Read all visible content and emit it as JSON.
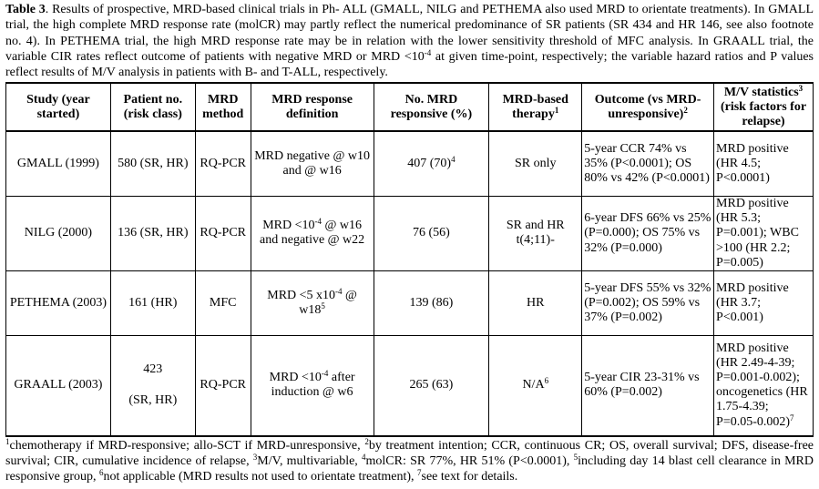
{
  "caption": {
    "label": "Table 3",
    "text": ". Results of prospective, MRD-based clinical trials in Ph- ALL (GMALL, NILG and PETHEMA also used MRD to orientate treatments). In GMALL trial, the high complete MRD response rate (molCR) may partly reflect the numerical predominance of SR patients (SR 434 and HR 146, see also footnote no. 4). In PETHEMA trial, the high MRD response rate may be in relation with the lower sensitivity threshold of MFC analysis. In GRAALL trial, the variable CIR rates reflect outcome of patients with negative MRD or MRD <10",
    "sup": "-4",
    "text2": " at given time-point, respectively; the variable hazard ratios and P values reflect results of M/V analysis in patients with B- and T-ALL, respectively."
  },
  "headers": {
    "study": "Study (year started)",
    "patient": "Patient no. (risk class)",
    "method": "MRD method",
    "definition": "MRD response definition",
    "responsive": "No. MRD responsive (%)",
    "therapy": "MRD-based therapy",
    "therapy_sup": "1",
    "outcome": "Outcome (vs MRD-unresponsive)",
    "outcome_sup": "2",
    "mv_a": "M/V statistics",
    "mv_sup": "3",
    "mv_b": " (risk factors for relapse)"
  },
  "rows": [
    {
      "study": "GMALL (1999)",
      "patient": "580 (SR, HR)",
      "method": "RQ-PCR",
      "definition": "MRD negative @ w10 and @ w16",
      "def_sup": "",
      "def_tail": "",
      "responsive": "407 (70)",
      "resp_sup": "4",
      "therapy": "SR only",
      "therapy_sup": "",
      "outcome": "5-year CCR 74% vs 35% (P<0.0001); OS 80% vs 42% (P<0.0001)",
      "mv": "MRD positive (HR 4.5; P<0.0001)"
    },
    {
      "study": "NILG (2000)",
      "patient": "136 (SR, HR)",
      "method": "RQ-PCR",
      "definition": "MRD <10",
      "def_sup": "-4",
      "def_tail": " @ w16 and negative @ w22",
      "responsive": "76 (56)",
      "resp_sup": "",
      "therapy": "SR and HR t(4;11)-",
      "therapy_sup": "",
      "outcome": "6-year DFS 66% vs 25% (P=0.000); OS 75% vs 32% (P=0.000)",
      "mv": "MRD positive (HR 5.3; P=0.001); WBC >100 (HR 2.2; P=0.005)"
    },
    {
      "study": "PETHEMA (2003)",
      "patient": "161 (HR)",
      "method": "MFC",
      "definition": "MRD <5 x10",
      "def_sup": "-4",
      "def_tail": " @ w18",
      "def_tail_sup": "5",
      "responsive": "139 (86)",
      "resp_sup": "",
      "therapy": "HR",
      "therapy_sup": "",
      "outcome": "5-year DFS 55% vs 32% (P=0.002); OS 59% vs 37% (P=0.002)",
      "mv": "MRD positive (HR 3.7; P<0.001)"
    },
    {
      "study": "GRAALL (2003)",
      "patient_top": "423",
      "patient": "(SR, HR)",
      "method": "RQ-PCR",
      "definition": "MRD <10",
      "def_sup": "-4",
      "def_tail": " after induction @ w6",
      "responsive": "265 (63)",
      "resp_sup": "",
      "therapy": "N/A",
      "therapy_sup": "6",
      "outcome": "5-year CIR 23-31% vs 60% (P=0.002)",
      "mv": "MRD positive (HR 2.49-4-39; P=0.001-0.002); oncogenetics (HR 1.75-4.39; P=0.05-0.002)",
      "mv_sup": "7"
    }
  ],
  "footnote": {
    "s1": "1",
    "t1": "chemotherapy if MRD-responsive; allo-SCT if MRD-unresponsive, ",
    "s2": "2",
    "t2": "by treatment intention; CCR, continuous CR; OS, overall survival; DFS, disease-free survival; CIR, cumulative incidence of relapse, ",
    "s3": "3",
    "t3": "M/V, multivariable, ",
    "s4": "4",
    "t4": "molCR: SR 77%, HR 51% (P<0.0001), ",
    "s5": "5",
    "t5": "including day 14 blast cell clearance in MRD responsive group, ",
    "s6": "6",
    "t6": "not applicable (MRD results not used to orientate treatment), ",
    "s7": "7",
    "t7": "see text for details."
  }
}
